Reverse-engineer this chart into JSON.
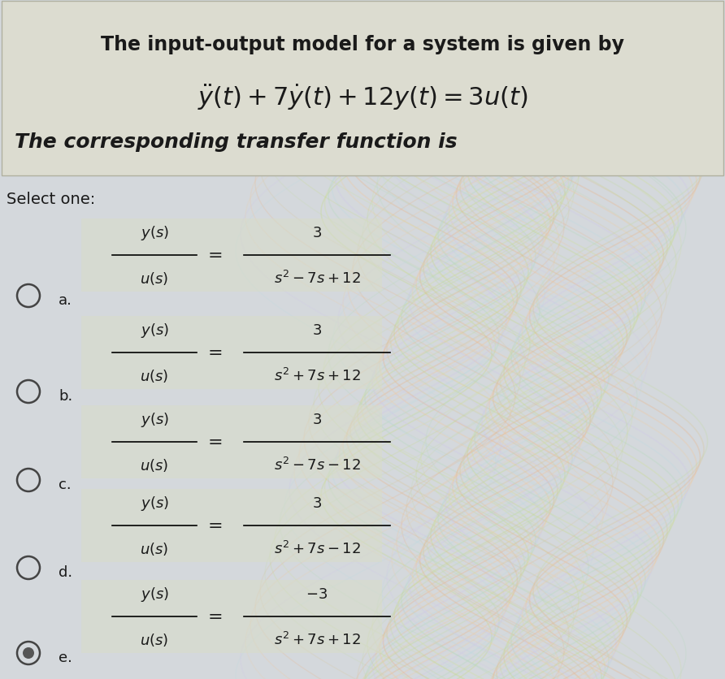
{
  "background_color": "#d4d8dc",
  "header_bg": "#e8e8e0",
  "header_text1": "The input-output model for a system is given by",
  "header_text2": "$\\ddot{y}(t) + 7\\dot{y}(t) + 12y(t) = 3u(t)$",
  "subheader": "The corresponding transfer function is",
  "select_text": "Select one:",
  "options": [
    {
      "label": "a.",
      "lhs_num": "$y(s)$",
      "lhs_den": "$u(s)$",
      "rhs_num": "3",
      "rhs_den": "$s^2-7s+12$"
    },
    {
      "label": "b.",
      "lhs_num": "$y(s)$",
      "lhs_den": "$u(s)$",
      "rhs_num": "3",
      "rhs_den": "$s^2+7s+12$"
    },
    {
      "label": "c.",
      "lhs_num": "$y(s)$",
      "lhs_den": "$u(s)$",
      "rhs_num": "3",
      "rhs_den": "$s^2-7s-12$"
    },
    {
      "label": "d.",
      "lhs_num": "$y(s)$",
      "lhs_den": "$u(s)$",
      "rhs_num": "3",
      "rhs_den": "$s^2+7s-12$"
    },
    {
      "label": "e.",
      "lhs_num": "$y(s)$",
      "lhs_den": "$u(s)$",
      "rhs_num": "$-3$",
      "rhs_den": "$s^2+7s+12$"
    }
  ],
  "text_color": "#1a1a1a",
  "header_box_color": "#dcdcd0",
  "option_highlight_color": "#d8dcc8"
}
